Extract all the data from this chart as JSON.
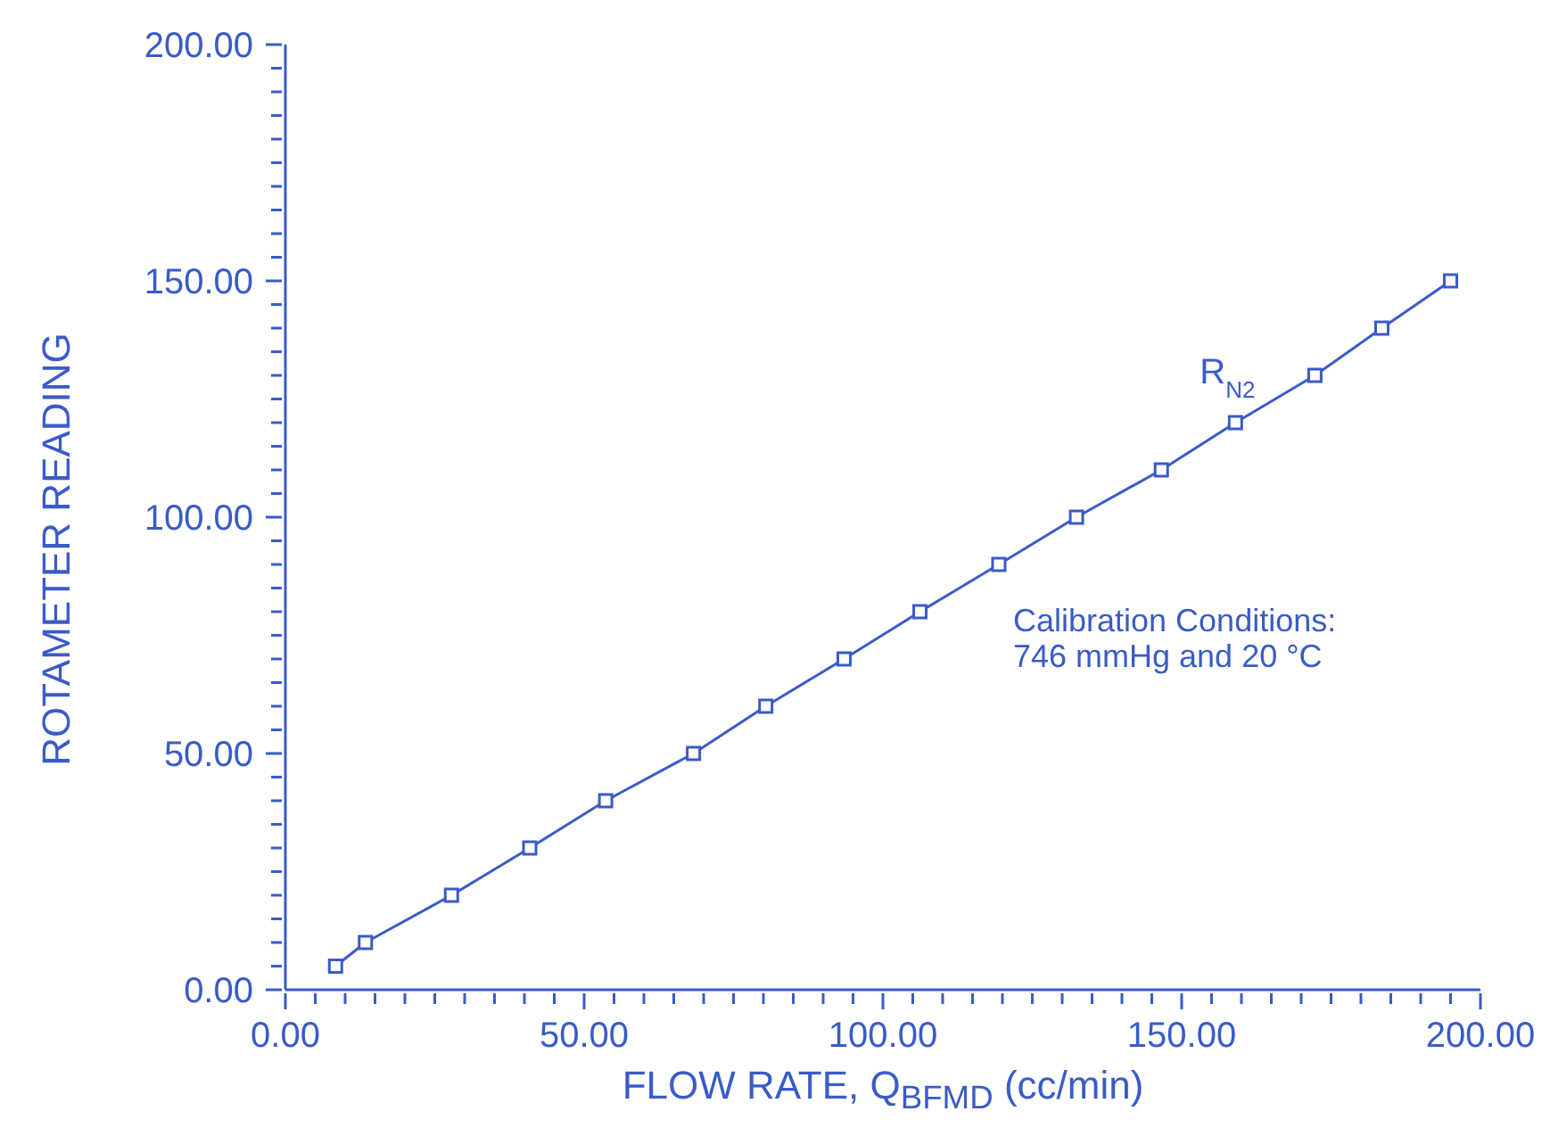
{
  "chart_data": {
    "type": "line",
    "xlabel": "FLOW RATE, Q$_{BFMD}$ (cc/min)",
    "ylabel": "ROTAMETER READING",
    "annotations": [
      "Calibration Conditions:\n746 mmHg and 20 °C"
    ],
    "series": [
      {
        "name": "R$_{N2}$",
        "color": "#3a5bc7",
        "x": [
          8.4,
          13.4,
          27.8,
          40.9,
          53.6,
          68.3,
          80.4,
          93.5,
          106.2,
          119.4,
          132.4,
          146.6,
          159,
          172.3,
          183.5,
          195
        ],
        "values": [
          5,
          10,
          20,
          30,
          40,
          50,
          60,
          70,
          80,
          90,
          100,
          110,
          120,
          130,
          140,
          150
        ]
      }
    ],
    "xlim": [
      0,
      200
    ],
    "ylim": [
      0,
      200
    ],
    "xticks": [
      {
        "value": 0,
        "label": "0.00"
      },
      {
        "value": 5,
        "label": null
      },
      {
        "value": 10,
        "label": null
      },
      {
        "value": 15,
        "label": null
      },
      {
        "value": 20,
        "label": null
      },
      {
        "value": 25,
        "label": null
      },
      {
        "value": 30,
        "label": null
      },
      {
        "value": 35,
        "label": null
      },
      {
        "value": 40,
        "label": null
      },
      {
        "value": 45,
        "label": null
      },
      {
        "value": 50,
        "label": "50.00"
      },
      {
        "value": 55,
        "label": null
      },
      {
        "value": 60,
        "label": null
      },
      {
        "value": 65,
        "label": null
      },
      {
        "value": 70,
        "label": null
      },
      {
        "value": 75,
        "label": null
      },
      {
        "value": 80,
        "label": null
      },
      {
        "value": 85,
        "label": null
      },
      {
        "value": 90,
        "label": null
      },
      {
        "value": 95,
        "label": null
      },
      {
        "value": 100,
        "label": "100.00"
      },
      {
        "value": 105,
        "label": null
      },
      {
        "value": 110,
        "label": null
      },
      {
        "value": 115,
        "label": null
      },
      {
        "value": 120,
        "label": null
      },
      {
        "value": 125,
        "label": null
      },
      {
        "value": 130,
        "label": null
      },
      {
        "value": 135,
        "label": null
      },
      {
        "value": 140,
        "label": null
      },
      {
        "value": 145,
        "label": null
      },
      {
        "value": 150,
        "label": "150.00"
      },
      {
        "value": 155,
        "label": null
      },
      {
        "value": 160,
        "label": null
      },
      {
        "value": 165,
        "label": null
      },
      {
        "value": 170,
        "label": null
      },
      {
        "value": 175,
        "label": null
      },
      {
        "value": 180,
        "label": null
      },
      {
        "value": 185,
        "label": null
      },
      {
        "value": 190,
        "label": null
      },
      {
        "value": 195,
        "label": null
      },
      {
        "value": 200,
        "label": "200.00"
      }
    ],
    "yticks": [
      {
        "value": 0,
        "label": "0.00"
      },
      {
        "value": 5,
        "label": null
      },
      {
        "value": 10,
        "label": null
      },
      {
        "value": 15,
        "label": null
      },
      {
        "value": 20,
        "label": null
      },
      {
        "value": 25,
        "label": null
      },
      {
        "value": 30,
        "label": null
      },
      {
        "value": 35,
        "label": null
      },
      {
        "value": 40,
        "label": null
      },
      {
        "value": 45,
        "label": null
      },
      {
        "value": 50,
        "label": "50.00"
      },
      {
        "value": 55,
        "label": null
      },
      {
        "value": 60,
        "label": null
      },
      {
        "value": 65,
        "label": null
      },
      {
        "value": 70,
        "label": null
      },
      {
        "value": 75,
        "label": null
      },
      {
        "value": 80,
        "label": null
      },
      {
        "value": 85,
        "label": null
      },
      {
        "value": 90,
        "label": null
      },
      {
        "value": 95,
        "label": null
      },
      {
        "value": 100,
        "label": "100.00"
      },
      {
        "value": 105,
        "label": null
      },
      {
        "value": 110,
        "label": null
      },
      {
        "value": 115,
        "label": null
      },
      {
        "value": 120,
        "label": null
      },
      {
        "value": 125,
        "label": null
      },
      {
        "value": 130,
        "label": null
      },
      {
        "value": 135,
        "label": null
      },
      {
        "value": 140,
        "label": null
      },
      {
        "value": 145,
        "label": null
      },
      {
        "value": 150,
        "label": "150.00"
      },
      {
        "value": 155,
        "label": null
      },
      {
        "value": 160,
        "label": null
      },
      {
        "value": 165,
        "label": null
      },
      {
        "value": 170,
        "label": null
      },
      {
        "value": 175,
        "label": null
      },
      {
        "value": 180,
        "label": null
      },
      {
        "value": 185,
        "label": null
      },
      {
        "value": 190,
        "label": null
      },
      {
        "value": 195,
        "label": null
      },
      {
        "value": 200,
        "label": "200.00"
      }
    ],
    "marker": "square",
    "line_style": "solid",
    "grid": false,
    "legend": false
  }
}
